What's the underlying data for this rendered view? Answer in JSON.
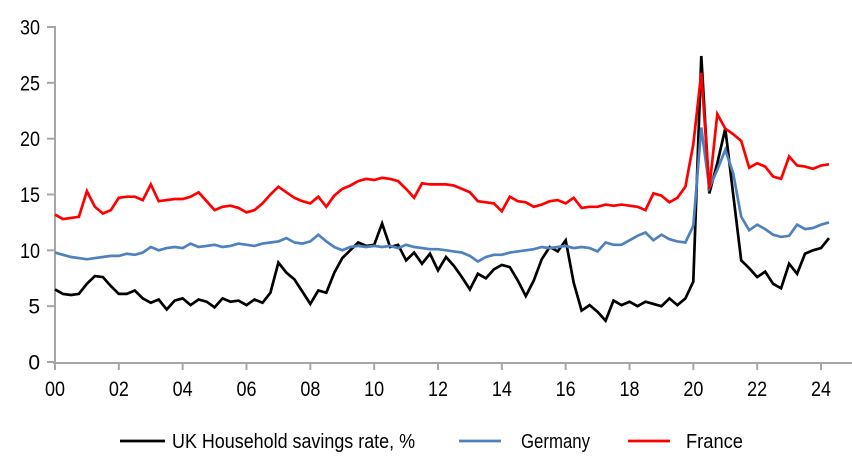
{
  "chart_data": {
    "type": "line",
    "title": "",
    "x_axis": {
      "tick_labels": [
        "00",
        "02",
        "04",
        "06",
        "08",
        "10",
        "12",
        "14",
        "16",
        "18",
        "20",
        "22",
        "24"
      ],
      "tick_years": [
        2000,
        2002,
        2004,
        2006,
        2008,
        2010,
        2012,
        2014,
        2016,
        2018,
        2020,
        2022,
        2024
      ],
      "range_years": [
        2000,
        2025
      ],
      "frequency": "quarterly",
      "start_period": "2000Q1",
      "end_period": "2024Q2"
    },
    "y_axis": {
      "tick_labels": [
        "0",
        "5",
        "10",
        "15",
        "20",
        "25",
        "30"
      ],
      "ticks": [
        0,
        5,
        10,
        15,
        20,
        25,
        30
      ],
      "range": [
        0,
        30
      ]
    },
    "grid": "off",
    "legend_position": "bottom",
    "series": [
      {
        "name": "UK Household savings rate, %",
        "color": "#000000",
        "values": [
          6.5,
          6.1,
          6.0,
          6.1,
          7.0,
          7.7,
          7.6,
          6.8,
          6.1,
          6.1,
          6.4,
          5.7,
          5.3,
          5.6,
          4.7,
          5.5,
          5.7,
          5.1,
          5.6,
          5.4,
          4.9,
          5.7,
          5.4,
          5.5,
          5.1,
          5.6,
          5.3,
          6.2,
          8.9,
          8.0,
          7.4,
          6.3,
          5.2,
          6.4,
          6.2,
          8.0,
          9.3,
          10.0,
          10.7,
          10.4,
          10.5,
          12.4,
          10.3,
          10.5,
          9.1,
          9.8,
          8.8,
          9.7,
          8.2,
          9.4,
          8.6,
          7.6,
          6.5,
          7.9,
          7.5,
          8.3,
          8.7,
          8.5,
          7.3,
          5.9,
          7.3,
          9.2,
          10.3,
          9.9,
          10.9,
          7.1,
          4.6,
          5.1,
          4.5,
          3.7,
          5.5,
          5.1,
          5.4,
          5.0,
          5.4,
          5.2,
          5.0,
          5.7,
          5.1,
          5.7,
          7.2,
          27.4,
          15.1,
          17.8,
          20.9,
          15.0,
          9.1,
          8.4,
          7.6,
          8.1,
          7.0,
          6.6,
          8.8,
          7.9,
          9.7,
          10.0,
          10.2,
          11.1
        ]
      },
      {
        "name": "Germany",
        "color": "#4F81BD",
        "values": [
          9.8,
          9.6,
          9.4,
          9.3,
          9.2,
          9.3,
          9.4,
          9.5,
          9.5,
          9.7,
          9.6,
          9.8,
          10.3,
          10.0,
          10.2,
          10.3,
          10.2,
          10.6,
          10.3,
          10.4,
          10.5,
          10.3,
          10.4,
          10.6,
          10.5,
          10.4,
          10.6,
          10.7,
          10.8,
          11.1,
          10.7,
          10.6,
          10.8,
          11.4,
          10.8,
          10.3,
          10.0,
          10.3,
          10.4,
          10.3,
          10.4,
          10.3,
          10.4,
          10.2,
          10.5,
          10.3,
          10.2,
          10.1,
          10.1,
          10.0,
          9.9,
          9.8,
          9.5,
          9.0,
          9.4,
          9.6,
          9.6,
          9.8,
          9.9,
          10.0,
          10.1,
          10.3,
          10.2,
          10.3,
          10.4,
          10.2,
          10.3,
          10.2,
          9.9,
          10.7,
          10.5,
          10.5,
          10.9,
          11.3,
          11.6,
          10.9,
          11.4,
          11.0,
          10.8,
          10.7,
          12.2,
          21.0,
          15.6,
          17.2,
          19.0,
          16.9,
          13.0,
          11.8,
          12.3,
          11.9,
          11.4,
          11.2,
          11.3,
          12.3,
          11.9,
          12.0,
          12.3,
          12.5
        ]
      },
      {
        "name": "France",
        "color": "#FF0000",
        "values": [
          13.2,
          12.8,
          12.9,
          13.0,
          15.3,
          13.9,
          13.3,
          13.6,
          14.7,
          14.8,
          14.8,
          14.5,
          15.9,
          14.4,
          14.5,
          14.6,
          14.6,
          14.8,
          15.2,
          14.4,
          13.6,
          13.9,
          14.0,
          13.8,
          13.4,
          13.6,
          14.2,
          15.0,
          15.7,
          15.2,
          14.7,
          14.4,
          14.2,
          14.8,
          13.9,
          14.9,
          15.5,
          15.8,
          16.2,
          16.4,
          16.3,
          16.5,
          16.4,
          16.2,
          15.5,
          14.7,
          16.0,
          15.9,
          15.9,
          15.9,
          15.8,
          15.5,
          15.2,
          14.4,
          14.3,
          14.2,
          13.5,
          14.8,
          14.4,
          14.3,
          13.9,
          14.1,
          14.4,
          14.5,
          14.2,
          14.7,
          13.8,
          13.9,
          13.9,
          14.1,
          14.0,
          14.1,
          14.0,
          13.9,
          13.6,
          15.1,
          14.9,
          14.3,
          14.7,
          15.7,
          19.5,
          25.9,
          15.5,
          22.2,
          20.9,
          20.4,
          19.8,
          17.4,
          17.8,
          17.5,
          16.6,
          16.4,
          18.4,
          17.6,
          17.5,
          17.3,
          17.6,
          17.7
        ]
      }
    ]
  },
  "styles": {
    "axis_color": "#A6A6A6",
    "text_color": "#000000",
    "background": "#FFFFFF"
  },
  "legend": {
    "labels": [
      "UK Household savings rate, %",
      "Germany",
      "France"
    ]
  }
}
